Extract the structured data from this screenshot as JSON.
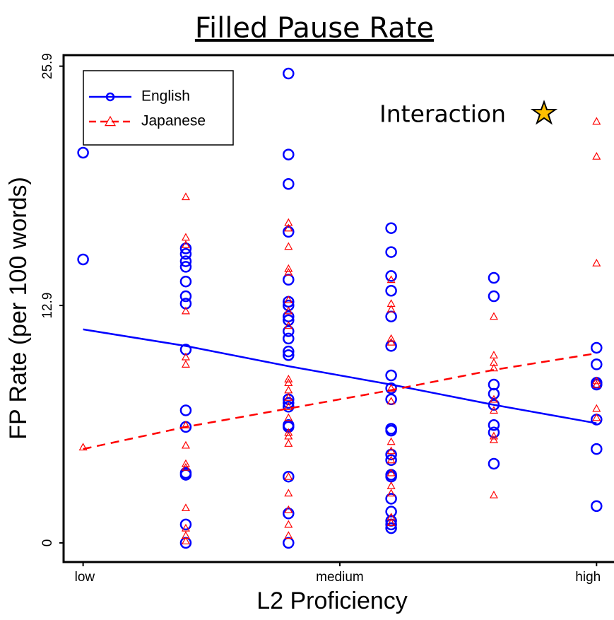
{
  "chart_data": {
    "type": "scatter",
    "title": "Filled Pause Rate",
    "xlabel": "L2 Proficiency",
    "ylabel": "FP Rate (per 100 words)",
    "annotation": "Interaction",
    "xlim": [
      -0.19,
      5.17
    ],
    "ylim": [
      -1.04,
      26.5
    ],
    "xticks": [
      {
        "value": 0,
        "label": "low"
      },
      {
        "value": 2.5,
        "label": "medium"
      },
      {
        "value": 5,
        "label": "high"
      }
    ],
    "yticks": [
      0,
      12.9,
      25.9
    ],
    "legend": "top-left",
    "series": [
      {
        "name": "English",
        "color": "#0000ff",
        "marker": "circle",
        "line_style": "solid",
        "x": [
          0,
          0,
          1,
          1,
          1,
          1,
          1,
          1,
          1,
          1,
          1,
          1,
          1,
          1,
          1,
          1,
          2,
          2,
          2,
          2,
          2,
          2,
          2,
          2,
          2,
          2,
          2,
          2,
          2,
          2,
          2,
          2,
          2,
          2,
          2,
          2,
          2,
          3,
          3,
          3,
          3,
          3,
          3,
          3,
          3,
          3,
          3,
          3,
          3,
          3,
          3,
          3,
          3,
          3,
          3,
          3,
          3,
          4,
          4,
          4,
          4,
          4,
          4,
          4,
          4,
          5,
          5,
          5,
          5,
          5,
          5,
          5
        ],
        "values": [
          21.2,
          15.4,
          16.0,
          15.7,
          15.3,
          15.0,
          14.2,
          13.4,
          13.0,
          10.5,
          7.2,
          6.3,
          3.8,
          3.7,
          1.0,
          0.0,
          25.5,
          21.1,
          19.5,
          16.9,
          14.3,
          13.1,
          12.9,
          12.3,
          12.1,
          11.5,
          11.1,
          10.4,
          10.2,
          7.8,
          7.6,
          7.4,
          6.4,
          6.3,
          3.6,
          1.6,
          0.0,
          17.1,
          15.8,
          14.5,
          13.7,
          12.3,
          10.7,
          9.1,
          8.4,
          7.8,
          6.2,
          6.1,
          4.8,
          4.5,
          3.7,
          3.6,
          2.4,
          1.7,
          1.2,
          1.0,
          0.8,
          14.4,
          13.4,
          8.6,
          8.1,
          7.5,
          6.4,
          6.0,
          4.3,
          10.6,
          9.7,
          8.7,
          8.6,
          6.7,
          5.1,
          2.0
        ],
        "fit": {
          "x": [
            0,
            1,
            2,
            3,
            4,
            5
          ],
          "values": [
            11.6,
            10.7,
            9.6,
            8.6,
            7.5,
            6.5
          ]
        }
      },
      {
        "name": "Japanese",
        "color": "#ff0000",
        "marker": "triangle",
        "line_style": "dashed",
        "x": [
          0,
          1,
          1,
          1,
          1,
          1,
          1,
          1,
          1,
          1,
          1,
          1,
          1,
          1,
          1,
          2,
          2,
          2,
          2,
          2,
          2,
          2,
          2,
          2,
          2,
          2,
          2,
          2,
          2,
          2,
          2,
          2,
          2,
          2,
          2,
          2,
          2,
          3,
          3,
          3,
          3,
          3,
          3,
          3,
          3,
          3,
          3,
          3,
          3,
          3,
          3,
          3,
          4,
          4,
          4,
          4,
          4,
          4,
          4,
          4,
          4,
          5,
          5,
          5,
          5,
          5,
          5,
          5
        ],
        "values": [
          5.2,
          18.8,
          16.6,
          16.2,
          12.6,
          10.1,
          9.7,
          6.4,
          5.3,
          4.3,
          4.1,
          1.9,
          0.8,
          0.4,
          0.1,
          17.4,
          17.1,
          16.1,
          14.9,
          14.7,
          13.2,
          12.6,
          11.8,
          8.9,
          8.7,
          8.3,
          7.9,
          7.4,
          6.8,
          6.0,
          5.8,
          5.4,
          3.6,
          2.7,
          1.8,
          1.0,
          0.4,
          14.3,
          13.0,
          12.7,
          11.1,
          10.9,
          8.4,
          7.7,
          5.5,
          5.0,
          4.5,
          3.8,
          3.1,
          2.7,
          1.4,
          1.1,
          12.3,
          10.2,
          9.8,
          9.5,
          7.8,
          7.2,
          5.8,
          5.6,
          2.6,
          22.9,
          21.0,
          15.2,
          8.8,
          8.6,
          7.3,
          6.8
        ],
        "fit": {
          "x": [
            0,
            1,
            2,
            3,
            4,
            5
          ],
          "values": [
            5.1,
            6.3,
            7.3,
            8.3,
            9.4,
            10.3
          ]
        }
      }
    ]
  }
}
